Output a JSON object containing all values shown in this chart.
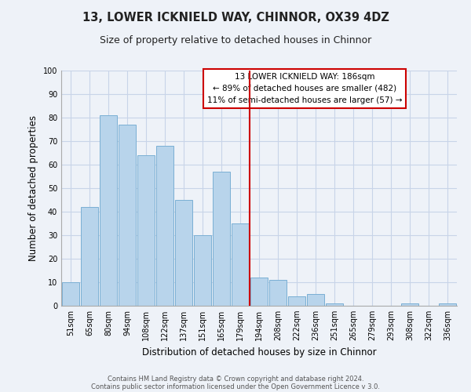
{
  "title": "13, LOWER ICKNIELD WAY, CHINNOR, OX39 4DZ",
  "subtitle": "Size of property relative to detached houses in Chinnor",
  "xlabel": "Distribution of detached houses by size in Chinnor",
  "ylabel": "Number of detached properties",
  "bar_color": "#b8d4eb",
  "bar_edge_color": "#7aafd4",
  "grid_color": "#c8d4e8",
  "background_color": "#eef2f8",
  "vline_x_index": 9.5,
  "vline_color": "#cc0000",
  "annotation_text": "13 LOWER ICKNIELD WAY: 186sqm\n← 89% of detached houses are smaller (482)\n11% of semi-detached houses are larger (57) →",
  "annotation_box_color": "#ffffff",
  "annotation_box_edge_color": "#cc0000",
  "categories": [
    "51sqm",
    "65sqm",
    "80sqm",
    "94sqm",
    "108sqm",
    "122sqm",
    "137sqm",
    "151sqm",
    "165sqm",
    "179sqm",
    "194sqm",
    "208sqm",
    "222sqm",
    "236sqm",
    "251sqm",
    "265sqm",
    "279sqm",
    "293sqm",
    "308sqm",
    "322sqm",
    "336sqm"
  ],
  "values": [
    10,
    42,
    81,
    77,
    64,
    68,
    45,
    30,
    57,
    35,
    12,
    11,
    4,
    5,
    1,
    0,
    0,
    0,
    1,
    0,
    1
  ],
  "ylim": [
    0,
    100
  ],
  "yticks": [
    0,
    10,
    20,
    30,
    40,
    50,
    60,
    70,
    80,
    90,
    100
  ],
  "footer_line1": "Contains HM Land Registry data © Crown copyright and database right 2024.",
  "footer_line2": "Contains public sector information licensed under the Open Government Licence v 3.0.",
  "title_fontsize": 10.5,
  "subtitle_fontsize": 9,
  "xlabel_fontsize": 8.5,
  "ylabel_fontsize": 8.5,
  "tick_fontsize": 7,
  "footer_fontsize": 6,
  "annot_fontsize": 7.5
}
